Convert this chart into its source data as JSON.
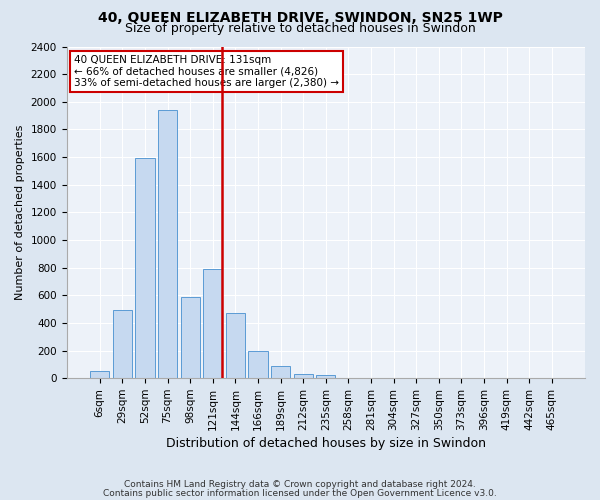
{
  "title1": "40, QUEEN ELIZABETH DRIVE, SWINDON, SN25 1WP",
  "title2": "Size of property relative to detached houses in Swindon",
  "xlabel": "Distribution of detached houses by size in Swindon",
  "ylabel": "Number of detached properties",
  "bar_color": "#c6d9f0",
  "bar_edge_color": "#5b9bd5",
  "categories": [
    "6sqm",
    "29sqm",
    "52sqm",
    "75sqm",
    "98sqm",
    "121sqm",
    "144sqm",
    "166sqm",
    "189sqm",
    "212sqm",
    "235sqm",
    "258sqm",
    "281sqm",
    "304sqm",
    "327sqm",
    "350sqm",
    "373sqm",
    "396sqm",
    "419sqm",
    "442sqm",
    "465sqm"
  ],
  "values": [
    50,
    490,
    1590,
    1940,
    590,
    790,
    470,
    195,
    85,
    30,
    20,
    0,
    0,
    0,
    0,
    0,
    0,
    0,
    0,
    0,
    0
  ],
  "ylim": [
    0,
    2400
  ],
  "yticks": [
    0,
    200,
    400,
    600,
    800,
    1000,
    1200,
    1400,
    1600,
    1800,
    2000,
    2200,
    2400
  ],
  "vline_color": "#cc0000",
  "vline_x_index": 5,
  "annotation_text": "40 QUEEN ELIZABETH DRIVE: 131sqm\n← 66% of detached houses are smaller (4,826)\n33% of semi-detached houses are larger (2,380) →",
  "footer1": "Contains HM Land Registry data © Crown copyright and database right 2024.",
  "footer2": "Contains public sector information licensed under the Open Government Licence v3.0.",
  "background_color": "#dce6f1",
  "plot_bg_color": "#edf2f9",
  "grid_color": "#ffffff",
  "title1_fontsize": 10,
  "title2_fontsize": 9,
  "xlabel_fontsize": 9,
  "ylabel_fontsize": 8,
  "tick_fontsize": 7.5,
  "annotation_fontsize": 7.5,
  "footer_fontsize": 6.5
}
